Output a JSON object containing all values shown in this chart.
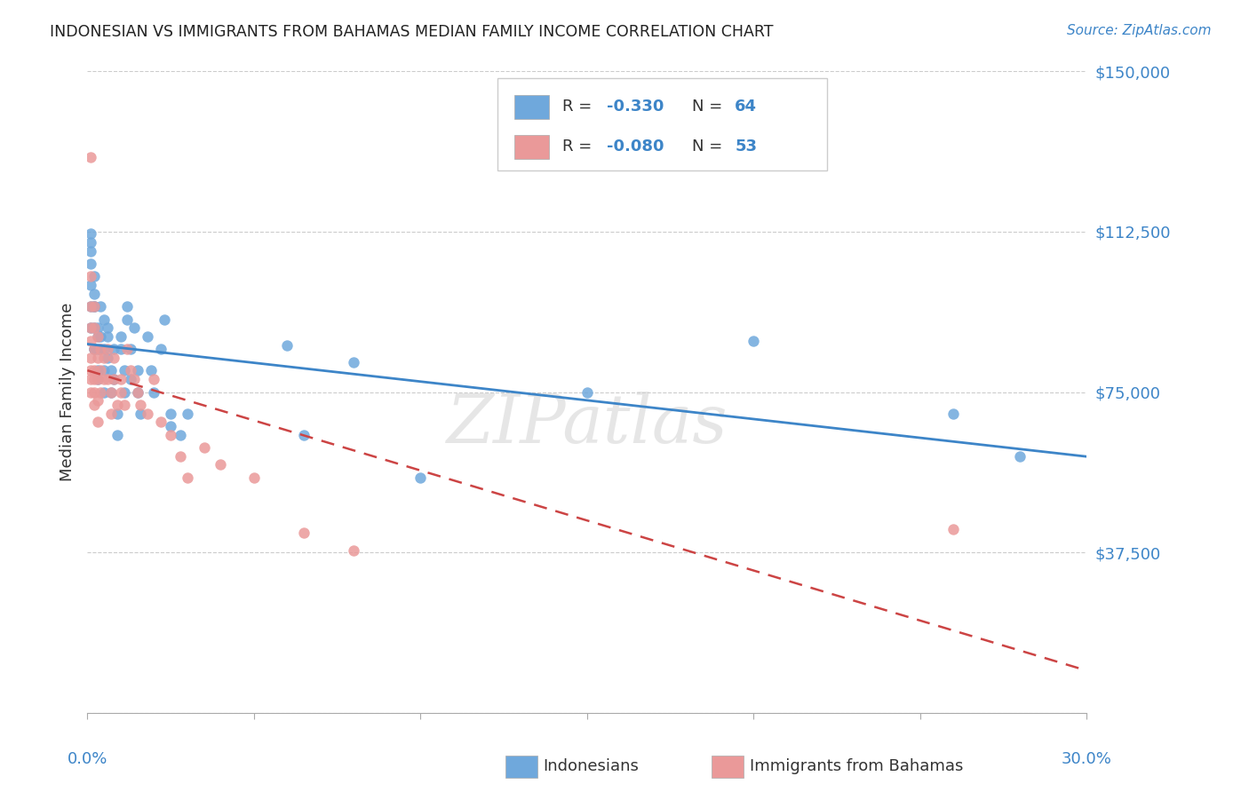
{
  "title": "INDONESIAN VS IMMIGRANTS FROM BAHAMAS MEDIAN FAMILY INCOME CORRELATION CHART",
  "source": "Source: ZipAtlas.com",
  "ylabel": "Median Family Income",
  "yticks": [
    0,
    37500,
    75000,
    112500,
    150000
  ],
  "ytick_labels": [
    "",
    "$37,500",
    "$75,000",
    "$112,500",
    "$150,000"
  ],
  "xlim": [
    0.0,
    0.3
  ],
  "ylim": [
    0,
    150000
  ],
  "watermark": "ZIPatlas",
  "legend1_r": "-0.330",
  "legend1_n": "64",
  "legend2_r": "-0.080",
  "legend2_n": "53",
  "blue_color": "#6fa8dc",
  "pink_color": "#ea9999",
  "trend_blue": "#3d85c8",
  "trend_pink": "#cc4444",
  "indonesians_x": [
    0.001,
    0.001,
    0.001,
    0.001,
    0.001,
    0.001,
    0.001,
    0.002,
    0.002,
    0.002,
    0.002,
    0.002,
    0.002,
    0.002,
    0.003,
    0.003,
    0.003,
    0.003,
    0.003,
    0.004,
    0.004,
    0.004,
    0.005,
    0.005,
    0.005,
    0.005,
    0.006,
    0.006,
    0.006,
    0.007,
    0.007,
    0.008,
    0.008,
    0.009,
    0.009,
    0.01,
    0.01,
    0.011,
    0.011,
    0.012,
    0.012,
    0.013,
    0.013,
    0.014,
    0.015,
    0.015,
    0.016,
    0.018,
    0.019,
    0.02,
    0.022,
    0.023,
    0.025,
    0.025,
    0.028,
    0.03,
    0.06,
    0.065,
    0.08,
    0.1,
    0.15,
    0.2,
    0.26,
    0.28
  ],
  "indonesians_y": [
    105000,
    108000,
    110000,
    112000,
    100000,
    95000,
    90000,
    102000,
    98000,
    95000,
    90000,
    85000,
    95000,
    85000,
    90000,
    85000,
    88000,
    80000,
    78000,
    95000,
    88000,
    85000,
    92000,
    85000,
    80000,
    75000,
    90000,
    88000,
    83000,
    80000,
    75000,
    85000,
    78000,
    70000,
    65000,
    88000,
    85000,
    80000,
    75000,
    95000,
    92000,
    85000,
    78000,
    90000,
    80000,
    75000,
    70000,
    88000,
    80000,
    75000,
    85000,
    92000,
    70000,
    67000,
    65000,
    70000,
    86000,
    65000,
    82000,
    55000,
    75000,
    87000,
    70000,
    60000
  ],
  "bahamas_x": [
    0.001,
    0.001,
    0.001,
    0.001,
    0.001,
    0.001,
    0.001,
    0.001,
    0.001,
    0.002,
    0.002,
    0.002,
    0.002,
    0.002,
    0.002,
    0.002,
    0.003,
    0.003,
    0.003,
    0.003,
    0.003,
    0.004,
    0.004,
    0.004,
    0.005,
    0.005,
    0.006,
    0.006,
    0.007,
    0.007,
    0.008,
    0.008,
    0.009,
    0.01,
    0.01,
    0.011,
    0.012,
    0.013,
    0.014,
    0.015,
    0.016,
    0.018,
    0.02,
    0.022,
    0.025,
    0.028,
    0.03,
    0.035,
    0.04,
    0.05,
    0.065,
    0.08,
    0.26
  ],
  "bahamas_y": [
    130000,
    102000,
    95000,
    90000,
    87000,
    83000,
    80000,
    78000,
    75000,
    95000,
    90000,
    85000,
    80000,
    78000,
    75000,
    72000,
    88000,
    83000,
    78000,
    73000,
    68000,
    85000,
    80000,
    75000,
    83000,
    78000,
    85000,
    78000,
    75000,
    70000,
    83000,
    78000,
    72000,
    78000,
    75000,
    72000,
    85000,
    80000,
    78000,
    75000,
    72000,
    70000,
    78000,
    68000,
    65000,
    60000,
    55000,
    62000,
    58000,
    55000,
    42000,
    38000,
    43000
  ]
}
